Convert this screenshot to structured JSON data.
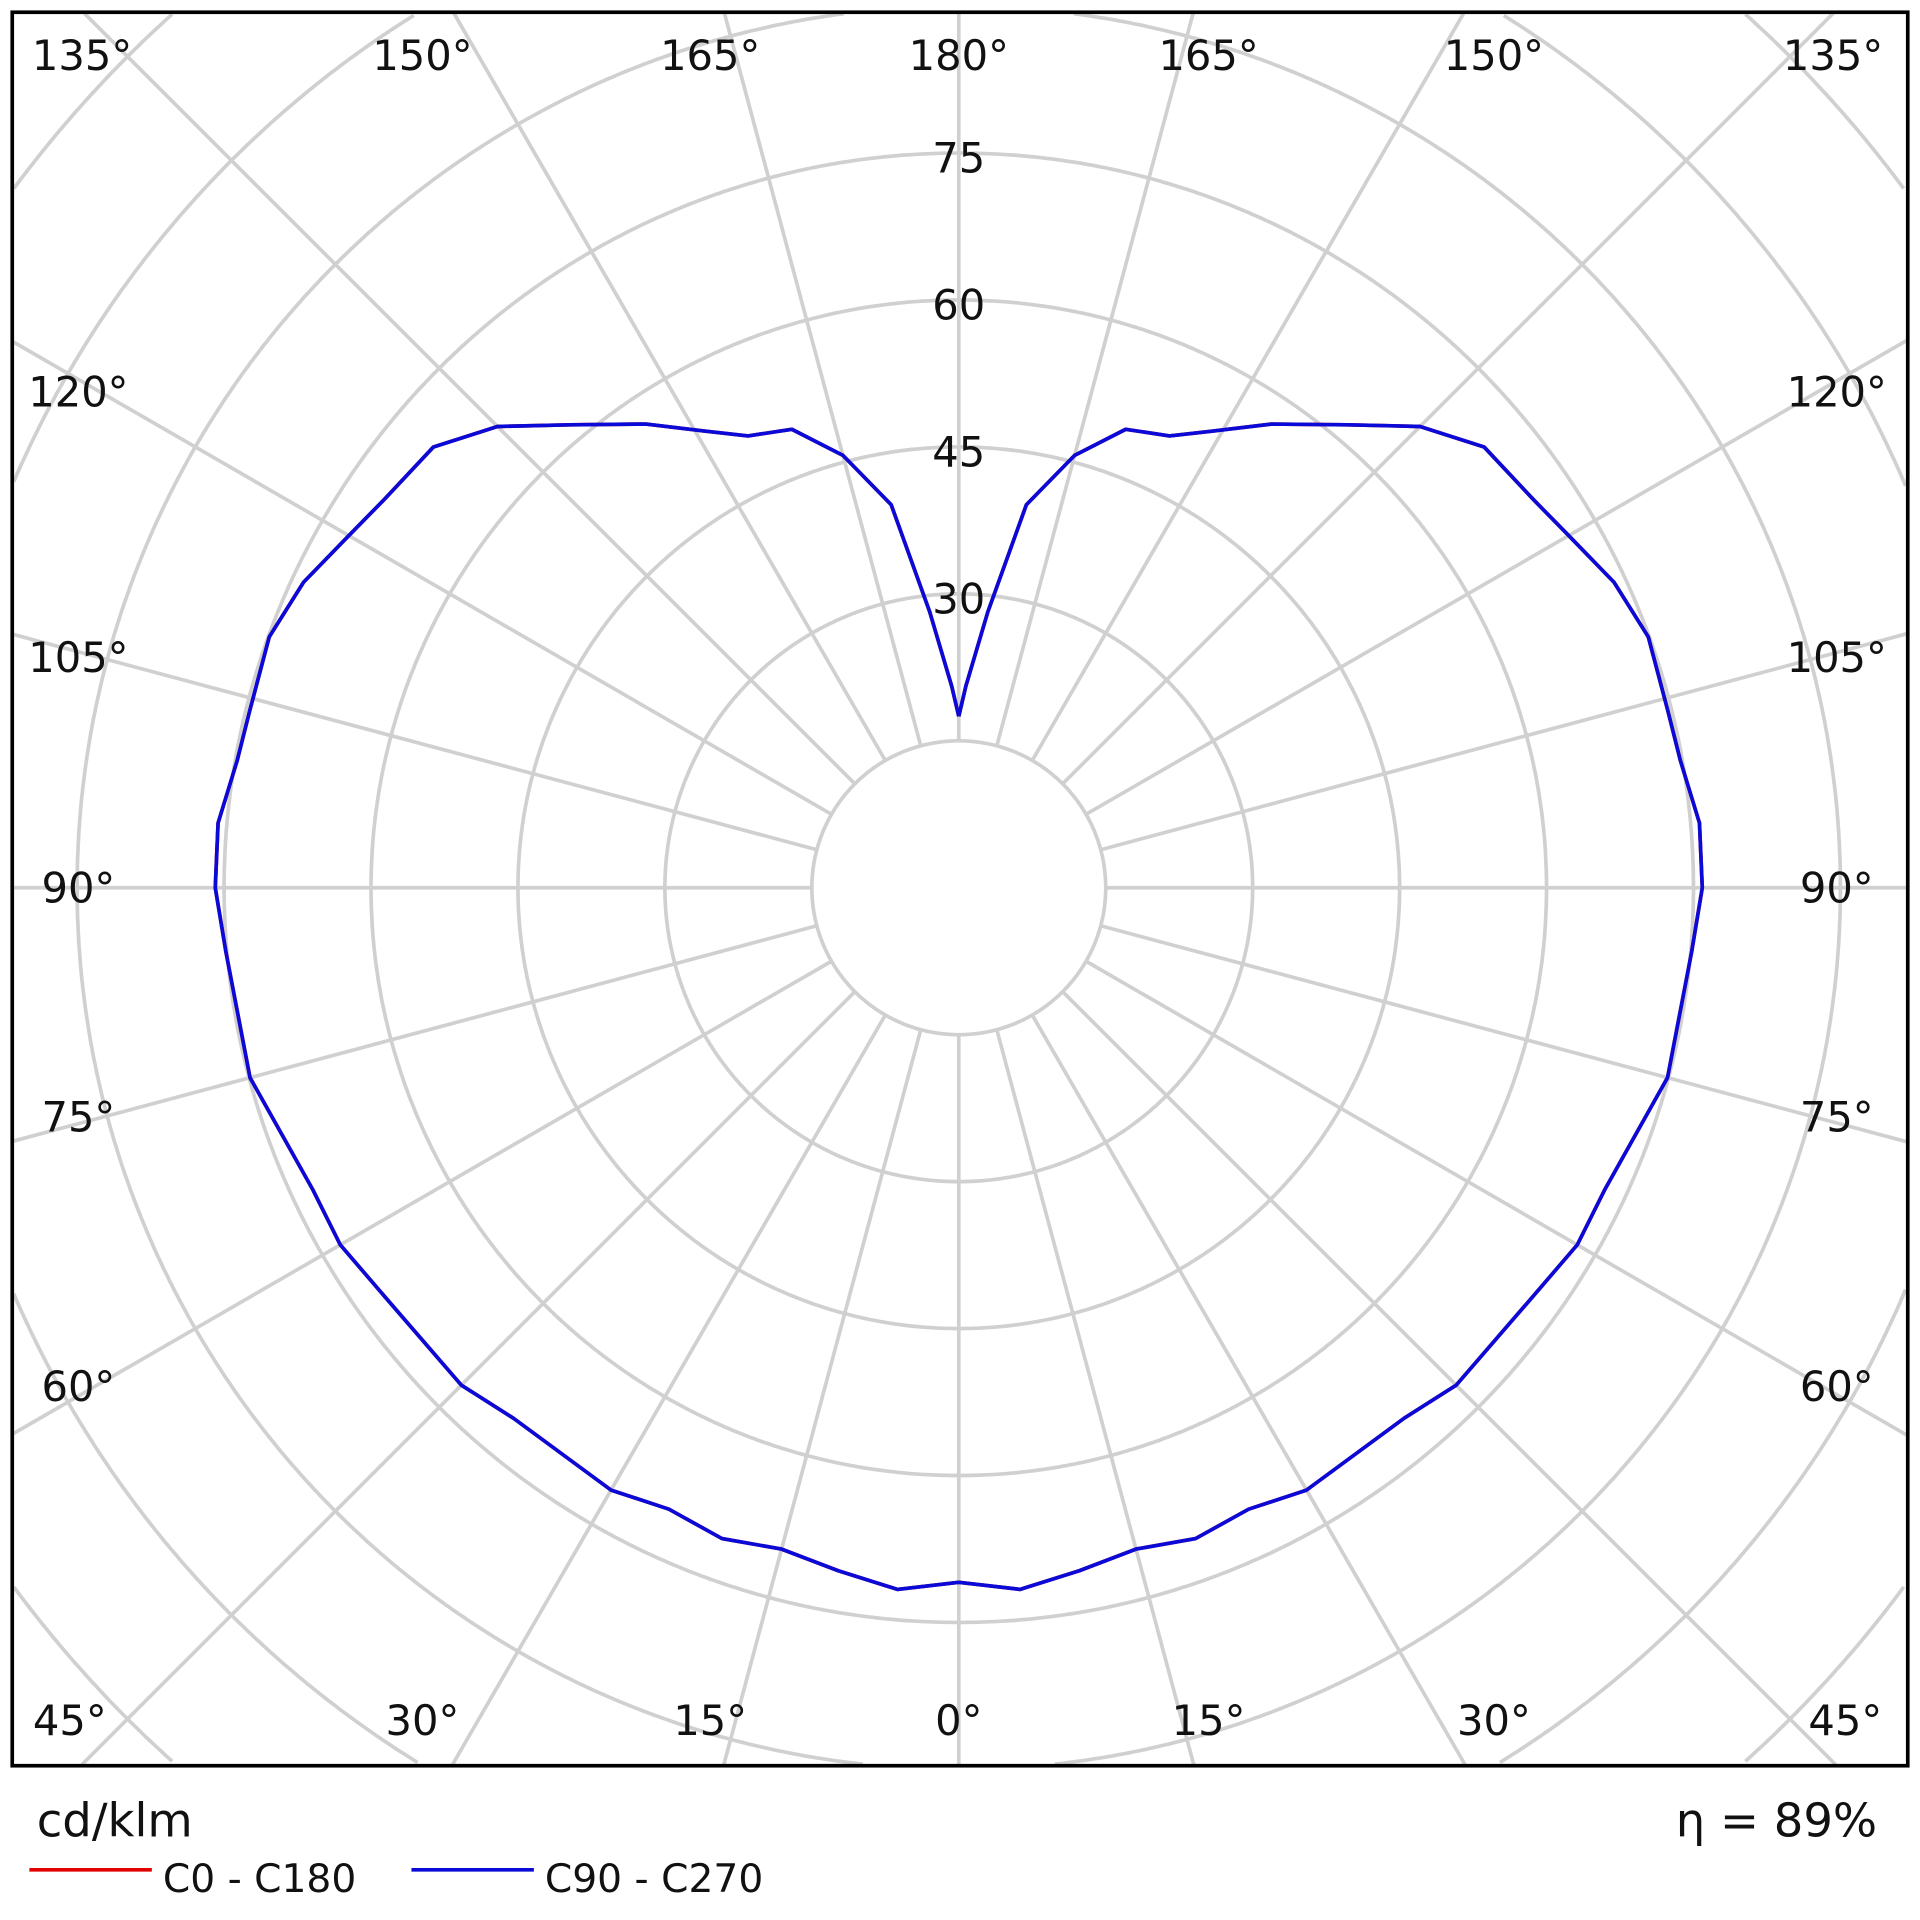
{
  "chart_data": {
    "type": "polar-line",
    "unit_label": "cd/klm",
    "efficiency_label": "η = 89%",
    "radial_ticks": [
      30,
      45,
      60,
      75
    ],
    "radial_tick_labels": [
      "30",
      "45",
      "60",
      "75"
    ],
    "grid_ring_values": [
      15,
      30,
      45,
      60,
      75,
      90,
      105,
      120,
      135
    ],
    "angle_step": 15,
    "angle_labels": {
      "bottom": [
        "45°",
        "30°",
        "15°",
        "0°",
        "15°",
        "30°",
        "45°"
      ],
      "top": [
        "135°",
        "150°",
        "165°",
        "180°",
        "165°",
        "150°",
        "135°"
      ],
      "left": [
        "120°",
        "105°",
        "90°",
        "75°",
        "60°"
      ],
      "right": [
        "120°",
        "105°",
        "90°",
        "75°",
        "60°"
      ]
    },
    "grid": true,
    "legend_position": "bottom-left",
    "angles": [
      0,
      5,
      10,
      15,
      20,
      25,
      30,
      40,
      45,
      55,
      60,
      65,
      75,
      85,
      90,
      95,
      100,
      104,
      110,
      115,
      120,
      124,
      130,
      135,
      140,
      146,
      151,
      155,
      160,
      165,
      170,
      174,
      178,
      180
    ],
    "series": [
      {
        "name": "C0 - C180",
        "color": "#e00000",
        "values": [
          70.9,
          71.9,
          70.8,
          69.9,
          70.7,
          70.0,
          71.0,
          70.7,
          71.8,
          72.0,
          72.9,
          72.8,
          74.9,
          75.1,
          75.9,
          75.9,
          74.8,
          74.6,
          74.9,
          73.8,
          71.9,
          70.8,
          70.0,
          66.6,
          61.7,
          57.1,
          53.3,
          50.9,
          49.8,
          45.7,
          39.7,
          28.3,
          20.6,
          17.5
        ]
      },
      {
        "name": "C90 - C270",
        "color": "#0a0ad8",
        "values": [
          70.9,
          71.9,
          70.8,
          69.9,
          70.7,
          70.0,
          71.0,
          70.7,
          71.8,
          72.0,
          72.9,
          72.8,
          74.9,
          75.1,
          75.9,
          75.9,
          74.8,
          74.6,
          74.9,
          73.8,
          71.9,
          70.8,
          70.0,
          66.6,
          61.7,
          57.1,
          53.3,
          50.9,
          49.8,
          45.7,
          39.7,
          28.3,
          20.6,
          17.5
        ]
      }
    ]
  }
}
